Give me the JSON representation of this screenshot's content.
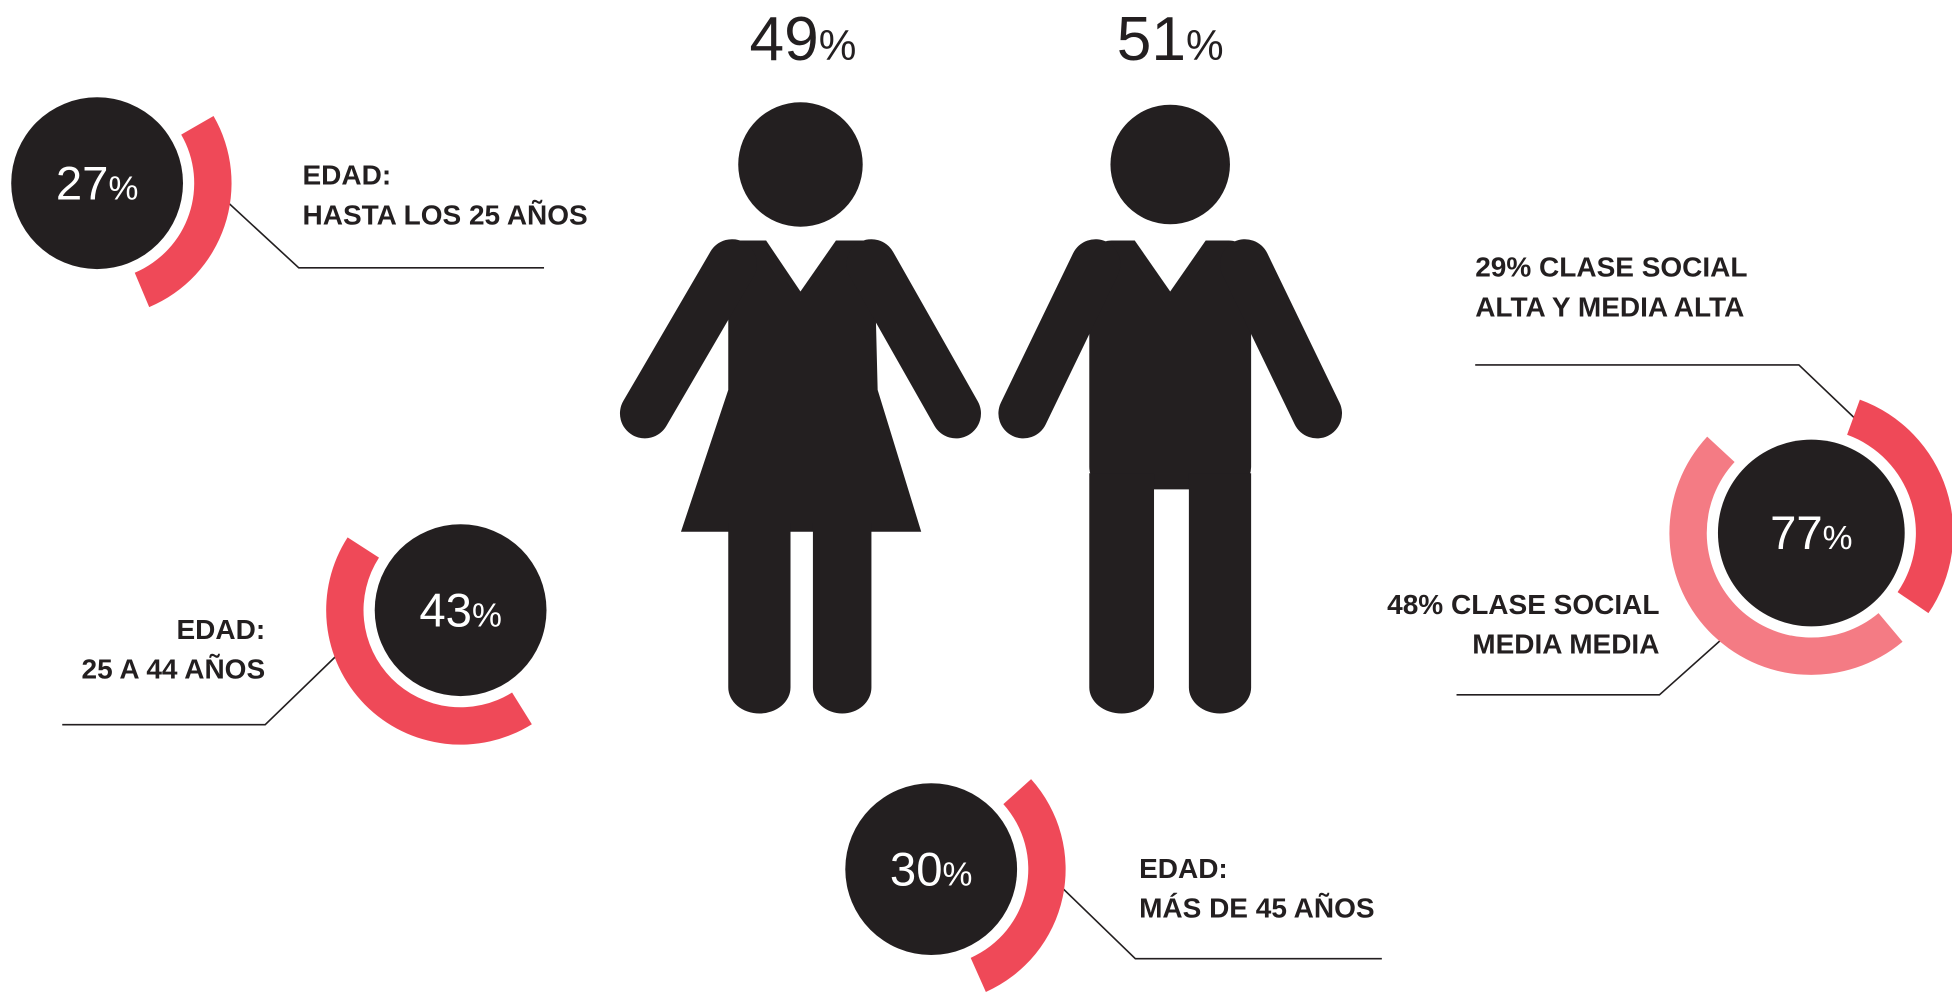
{
  "gender": [
    {
      "value": 49,
      "unit": "%"
    },
    {
      "value": 51,
      "unit": "%"
    }
  ],
  "age_groups": [
    {
      "value": 27,
      "unit": "%",
      "label_lines": [
        "EDAD:",
        "HASTA LOS 25 AÑOS"
      ]
    },
    {
      "value": 43,
      "unit": "%",
      "label_lines": [
        "EDAD:",
        "25 A 44 AÑOS"
      ]
    },
    {
      "value": 30,
      "unit": "%",
      "label_lines": [
        "EDAD:",
        "MÁS DE 45 AÑOS"
      ]
    }
  ],
  "social_class": {
    "total": {
      "value": 77,
      "unit": "%"
    },
    "segments": [
      {
        "value": 29,
        "label_lines": [
          "29% CLASE SOCIAL",
          "ALTA Y MEDIA ALTA"
        ]
      },
      {
        "value": 48,
        "label_lines": [
          "48% CLASE SOCIAL",
          "MEDIA MEDIA"
        ]
      }
    ]
  }
}
